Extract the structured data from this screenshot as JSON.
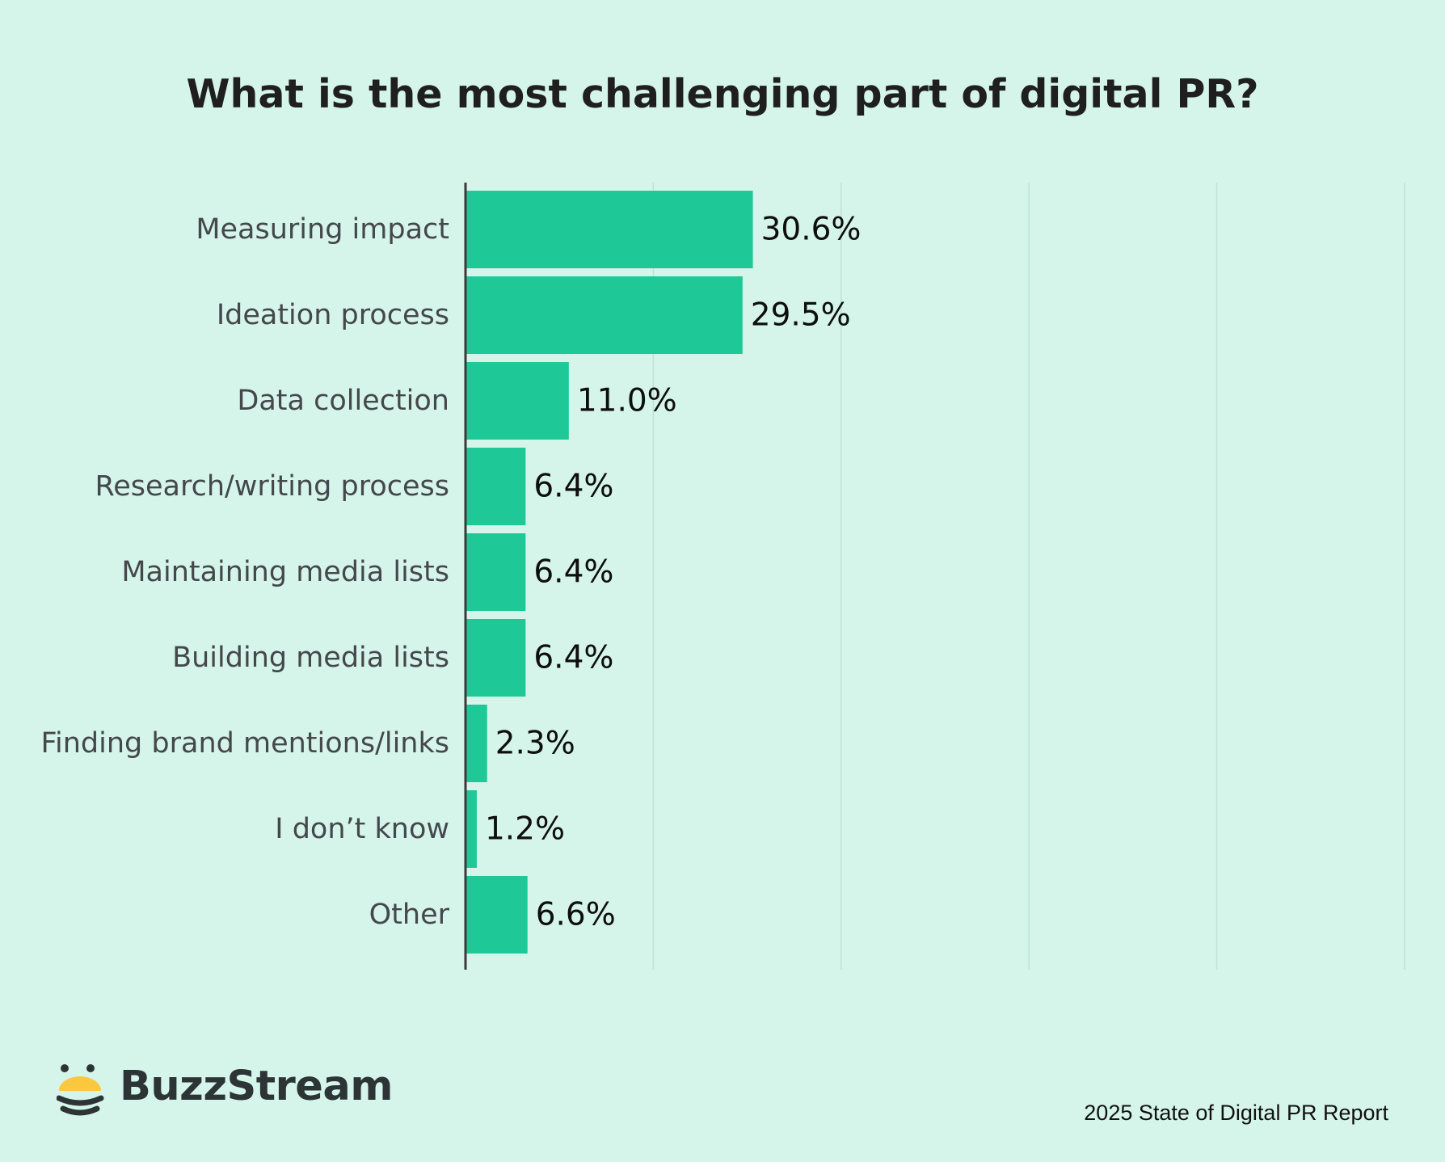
{
  "chart_data": {
    "type": "bar",
    "orientation": "horizontal",
    "title": "What is the most challenging part of digital PR?",
    "categories": [
      "Measuring impact",
      "Ideation process",
      "Data collection",
      "Research/writing process",
      "Maintaining media lists",
      "Building media lists",
      "Finding brand mentions/links",
      "I don’t know",
      "Other"
    ],
    "values": [
      30.6,
      29.5,
      11.0,
      6.4,
      6.4,
      6.4,
      2.3,
      1.2,
      6.6
    ],
    "value_labels": [
      "30.6%",
      "29.5%",
      "11.0%",
      "6.4%",
      "6.4%",
      "6.4%",
      "2.3%",
      "1.2%",
      "6.6%"
    ],
    "xlim": [
      0,
      100
    ],
    "grid": true,
    "bar_color": "#1fc997"
  },
  "brand": {
    "name": "BuzzStream",
    "logo_colors": {
      "yellow": "#fbc73c",
      "dark": "#2d3436"
    }
  },
  "footer": {
    "report": "2025 State of Digital PR Report"
  },
  "colors": {
    "background": "#d5f4ea",
    "axis": "#3a3a3a",
    "gridline": "#bfe2d6"
  }
}
